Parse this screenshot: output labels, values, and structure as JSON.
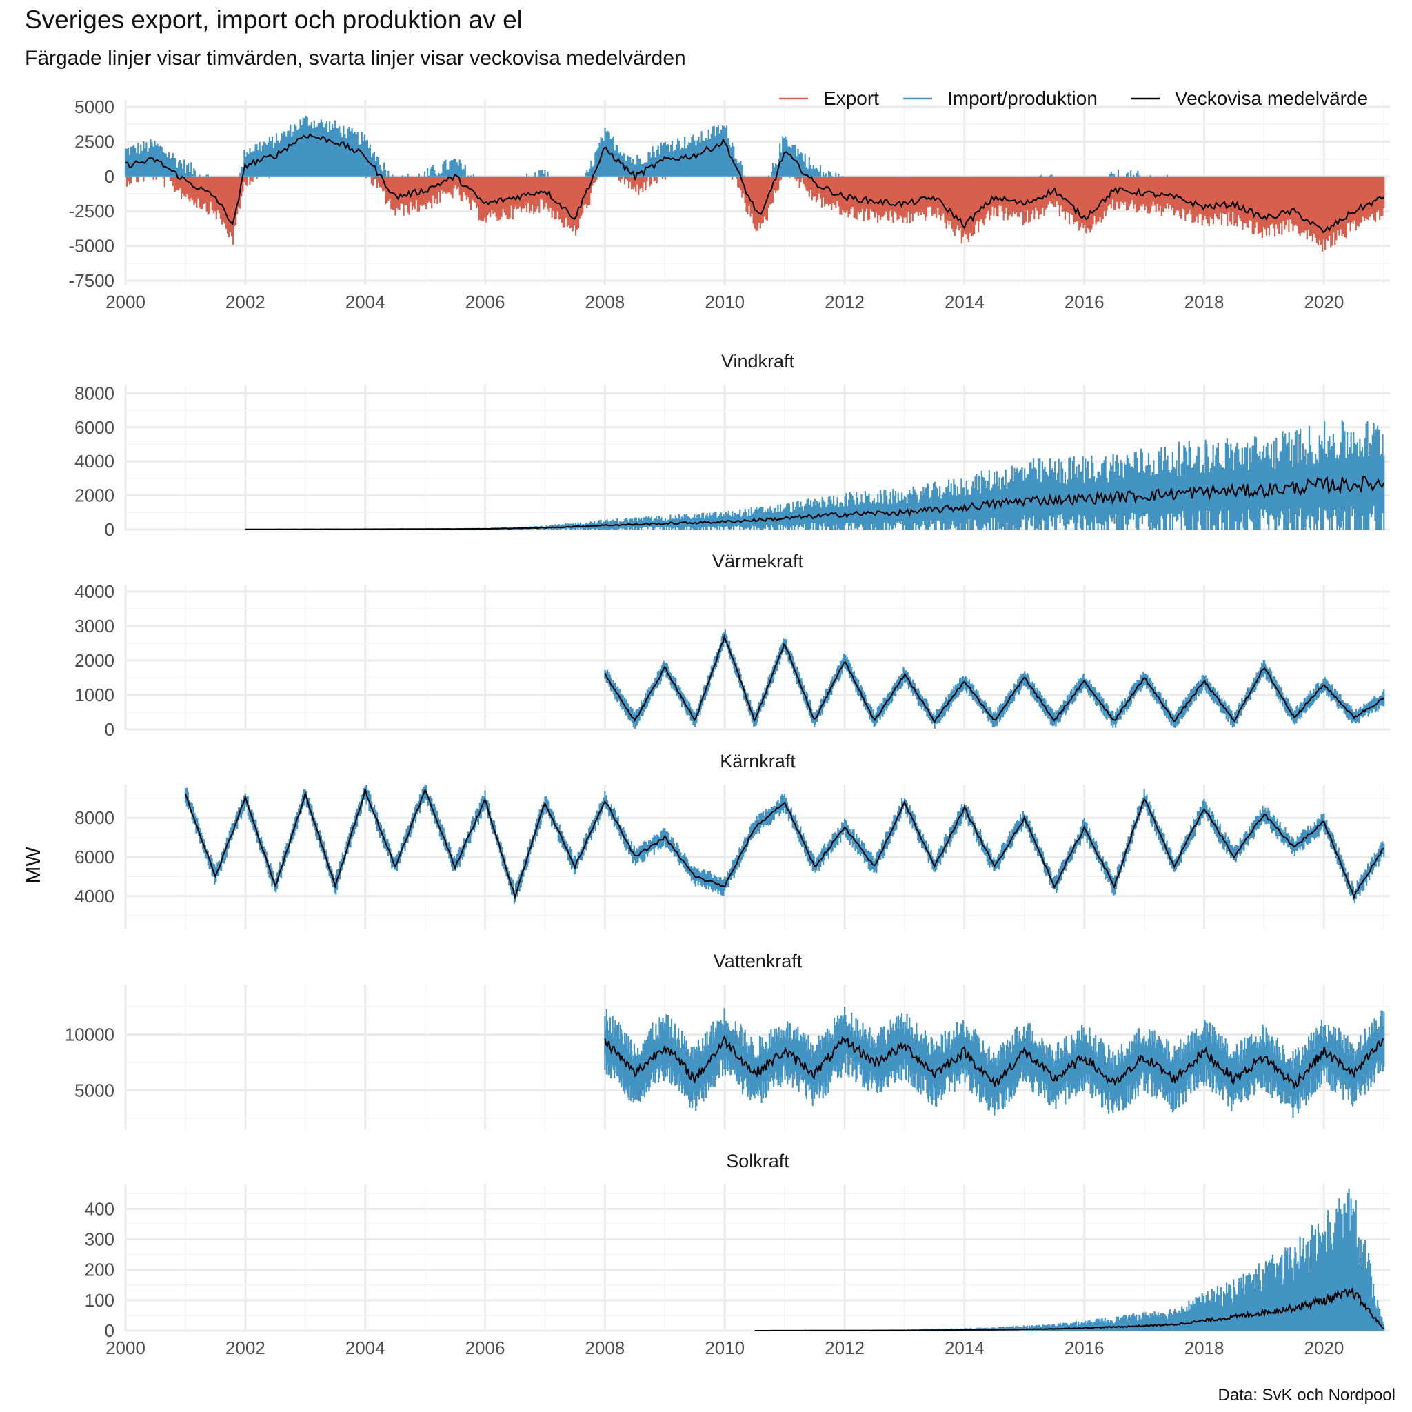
{
  "title": "Sveriges export, import och produktion av el",
  "subtitle": "Färgade linjer visar timvärden, svarta linjer visar veckovisa medelvärden",
  "caption": "Data: SvK och Nordpool",
  "ylabel": "MW",
  "colors": {
    "export": "#D6604D",
    "production": "#4393C3",
    "weekly": "#000000",
    "grid": "#EBEBEB",
    "text": "#4D4D4D"
  },
  "legend": {
    "position": "top-right",
    "items": [
      {
        "label": "Export",
        "color": "#D6604D"
      },
      {
        "label": "Import/produktion",
        "color": "#4393C3"
      },
      {
        "label": "Veckovisa medelvärde",
        "color": "#000000"
      }
    ]
  },
  "chart_data": [
    {
      "type": "line",
      "title": "",
      "x_domain": [
        2000,
        2021.1
      ],
      "x_ticks": [
        2000,
        2002,
        2004,
        2006,
        2008,
        2010,
        2012,
        2014,
        2016,
        2018,
        2020
      ],
      "ylim": [
        -7800,
        5500
      ],
      "y_ticks": [
        5000,
        2500,
        0,
        -2500,
        -5000,
        -7500
      ],
      "series": [
        {
          "name": "Veckovisa medelvärde",
          "x": [
            2000,
            2000.5,
            2001,
            2001.5,
            2001.8,
            2002,
            2002.5,
            2003,
            2003.5,
            2004,
            2004.5,
            2005,
            2005.5,
            2006,
            2006.5,
            2007,
            2007.5,
            2008,
            2008.5,
            2009,
            2009.5,
            2010,
            2010.4,
            2010.6,
            2011,
            2011.5,
            2012,
            2012.5,
            2013,
            2013.5,
            2014,
            2014.5,
            2015,
            2015.5,
            2016,
            2016.5,
            2017,
            2017.5,
            2018,
            2018.5,
            2019,
            2019.5,
            2020,
            2020.5,
            2021
          ],
          "y": [
            800,
            1200,
            -300,
            -1500,
            -3500,
            800,
            1500,
            3000,
            2500,
            1500,
            -1500,
            -1000,
            0,
            -2000,
            -1500,
            -1000,
            -3000,
            2000,
            0,
            1200,
            1500,
            2500,
            -1500,
            -3000,
            1800,
            -500,
            -1500,
            -1800,
            -2000,
            -1500,
            -3500,
            -1500,
            -2000,
            -1000,
            -3000,
            -1000,
            -1200,
            -1500,
            -2200,
            -2000,
            -3000,
            -2500,
            -4000,
            -2500,
            -1500
          ]
        }
      ]
    },
    {
      "type": "line",
      "title": "Vindkraft",
      "x_domain": [
        2000,
        2021.1
      ],
      "ylim": [
        0,
        8500
      ],
      "y_ticks": [
        0,
        2000,
        4000,
        6000,
        8000
      ],
      "series": [
        {
          "name": "Veckovisa medelvärde",
          "x": [
            2002,
            2004,
            2006,
            2007,
            2008,
            2009,
            2010,
            2011,
            2012,
            2013,
            2014,
            2015,
            2016,
            2017,
            2018,
            2019,
            2020,
            2021
          ],
          "y": [
            10,
            20,
            40,
            100,
            250,
            350,
            450,
            650,
            900,
            1000,
            1300,
            1700,
            1800,
            2000,
            2200,
            2300,
            2600,
            2700
          ]
        }
      ]
    },
    {
      "type": "line",
      "title": "Värmekraft",
      "x_domain": [
        2000,
        2021.1
      ],
      "ylim": [
        0,
        4200
      ],
      "y_ticks": [
        0,
        1000,
        2000,
        3000,
        4000
      ],
      "series": [
        {
          "name": "Veckovisa medelvärde",
          "x": [
            2008,
            2008.5,
            2009,
            2009.5,
            2010,
            2010.5,
            2011,
            2011.5,
            2012,
            2012.5,
            2013,
            2013.5,
            2014,
            2014.5,
            2015,
            2015.5,
            2016,
            2016.5,
            2017,
            2017.5,
            2018,
            2018.5,
            2019,
            2019.5,
            2020,
            2020.5,
            2021
          ],
          "y": [
            1600,
            250,
            1800,
            250,
            2700,
            250,
            2500,
            250,
            2000,
            250,
            1600,
            250,
            1400,
            250,
            1500,
            250,
            1400,
            250,
            1500,
            250,
            1400,
            250,
            1800,
            350,
            1300,
            350,
            900
          ]
        }
      ]
    },
    {
      "type": "line",
      "title": "Kärnkraft",
      "x_domain": [
        2000,
        2021.1
      ],
      "ylim": [
        2300,
        9700
      ],
      "y_ticks": [
        4000,
        6000,
        8000
      ],
      "series": [
        {
          "name": "Veckovisa medelvärde",
          "x": [
            2001,
            2001.5,
            2002,
            2002.5,
            2003,
            2003.5,
            2004,
            2004.5,
            2005,
            2005.5,
            2006,
            2006.5,
            2007,
            2007.5,
            2008,
            2008.5,
            2009,
            2009.5,
            2010,
            2010.5,
            2011,
            2011.5,
            2012,
            2012.5,
            2013,
            2013.5,
            2014,
            2014.5,
            2015,
            2015.5,
            2016,
            2016.5,
            2017,
            2017.5,
            2018,
            2018.5,
            2019,
            2019.5,
            2020,
            2020.5,
            2021
          ],
          "y": [
            9200,
            5000,
            9000,
            4500,
            9200,
            4500,
            9400,
            5500,
            9400,
            5500,
            8900,
            4000,
            8800,
            5500,
            8900,
            6000,
            7000,
            5000,
            4500,
            7500,
            8800,
            5500,
            7500,
            5500,
            8800,
            5500,
            8500,
            5500,
            8000,
            4500,
            7500,
            4500,
            9000,
            5500,
            8500,
            6000,
            8200,
            6500,
            7800,
            4000,
            6500
          ]
        }
      ]
    },
    {
      "type": "line",
      "title": "Vattenkraft",
      "x_domain": [
        2000,
        2021.1
      ],
      "ylim": [
        1500,
        14500
      ],
      "y_ticks": [
        5000,
        10000
      ],
      "series": [
        {
          "name": "Veckovisa medelvärde",
          "x": [
            2008,
            2008.5,
            2009,
            2009.5,
            2010,
            2010.5,
            2011,
            2011.5,
            2012,
            2012.5,
            2013,
            2013.5,
            2014,
            2014.5,
            2015,
            2015.5,
            2016,
            2016.5,
            2017,
            2017.5,
            2018,
            2018.5,
            2019,
            2019.5,
            2020,
            2020.5,
            2021
          ],
          "y": [
            9500,
            6500,
            9000,
            6000,
            9500,
            6500,
            8500,
            6500,
            9500,
            7500,
            9000,
            6500,
            8500,
            5500,
            8500,
            6000,
            8000,
            5500,
            8000,
            6000,
            8500,
            6000,
            8000,
            5500,
            8500,
            6500,
            9500
          ]
        }
      ]
    },
    {
      "type": "line",
      "title": "Solkraft",
      "x_domain": [
        2000,
        2021.1
      ],
      "x_ticks": [
        2000,
        2002,
        2004,
        2006,
        2008,
        2010,
        2012,
        2014,
        2016,
        2018,
        2020
      ],
      "ylim": [
        0,
        480
      ],
      "y_ticks": [
        0,
        100,
        200,
        300,
        400
      ],
      "series": [
        {
          "name": "Veckovisa medelvärde",
          "x": [
            2010.5,
            2013,
            2014.5,
            2015.5,
            2016.5,
            2017.5,
            2018.5,
            2019.5,
            2020.5,
            2021
          ],
          "y": [
            0,
            1,
            3,
            6,
            12,
            20,
            45,
            75,
            125,
            5
          ]
        }
      ]
    }
  ]
}
